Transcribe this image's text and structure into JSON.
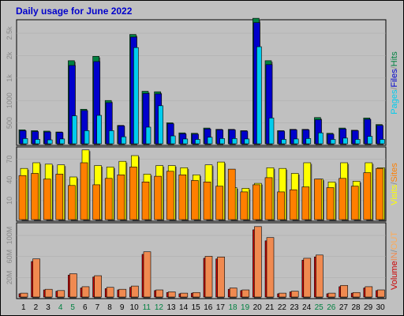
{
  "title": "Daily usage for June 2022",
  "colors": {
    "background": "#c0c0c0",
    "panel_border": "#000000",
    "hits": "#008040",
    "files": "#0000cc",
    "pages": "#00ccee",
    "sites": "#ff7f00",
    "visits": "#ffff00",
    "kbin": "#ff6b2a",
    "kbout": "#cc0000",
    "volume_in": "#f08a50",
    "volume_out": "#cc0000",
    "weekday_label": "#000000",
    "weekend_label": "#008040"
  },
  "chart_data": [
    {
      "type": "bar",
      "panel": "top",
      "categories": [
        "1",
        "2",
        "3",
        "4",
        "5",
        "6",
        "7",
        "8",
        "9",
        "10",
        "11",
        "12",
        "13",
        "14",
        "15",
        "16",
        "17",
        "18",
        "19",
        "20",
        "21",
        "22",
        "23",
        "24",
        "25",
        "26",
        "27",
        "28",
        "29",
        "30"
      ],
      "weekend_days": [
        "4",
        "5",
        "11",
        "12",
        "18",
        "19",
        "25",
        "26"
      ],
      "yticks": [
        "500",
        "1000",
        "1k",
        "2k",
        "2.5k"
      ],
      "ylim": [
        0,
        2800
      ],
      "series": [
        {
          "name": "Hits",
          "values": [
            320,
            300,
            290,
            270,
            1900,
            790,
            2000,
            990,
            420,
            2500,
            1200,
            1190,
            480,
            250,
            240,
            360,
            330,
            330,
            300,
            2870,
            1900,
            300,
            330,
            330,
            600,
            240,
            360,
            310,
            590,
            440
          ]
        },
        {
          "name": "Files",
          "values": [
            300,
            280,
            270,
            260,
            1790,
            760,
            1880,
            940,
            410,
            2440,
            1150,
            1140,
            460,
            230,
            220,
            340,
            320,
            320,
            290,
            2770,
            1810,
            290,
            320,
            320,
            550,
            220,
            340,
            300,
            560,
            420
          ]
        },
        {
          "name": "Pages",
          "values": [
            120,
            100,
            90,
            110,
            640,
            300,
            650,
            300,
            160,
            2200,
            380,
            870,
            180,
            110,
            100,
            150,
            120,
            120,
            110,
            2220,
            590,
            100,
            110,
            120,
            250,
            100,
            130,
            100,
            170,
            100
          ]
        }
      ]
    },
    {
      "type": "bar",
      "panel": "middle",
      "yticks": [
        "10",
        "40",
        "70"
      ],
      "ylim": [
        0,
        100
      ],
      "series": [
        {
          "name": "Visits",
          "values": [
            72,
            80,
            78,
            77,
            60,
            98,
            76,
            74,
            82,
            90,
            64,
            76,
            76,
            73,
            63,
            77,
            81,
            45,
            44,
            51,
            73,
            72,
            65,
            80,
            57,
            53,
            80,
            54,
            80,
            73
          ]
        },
        {
          "name": "Sites",
          "values": [
            62,
            65,
            57,
            64,
            48,
            80,
            49,
            58,
            63,
            74,
            53,
            61,
            68,
            63,
            55,
            53,
            47,
            71,
            39,
            49,
            59,
            39,
            42,
            46,
            57,
            45,
            58,
            47,
            66,
            72
          ]
        }
      ]
    },
    {
      "type": "bar",
      "panel": "bottom",
      "yticks": [
        "20M",
        "60M",
        "100M"
      ],
      "ylim": [
        0,
        110
      ],
      "series": [
        {
          "name": "Volume In",
          "values": [
            6,
            59,
            12,
            10,
            36,
            16,
            33,
            15,
            12,
            17,
            70,
            11,
            8,
            6,
            7,
            63,
            62,
            14,
            11,
            109,
            92,
            6,
            9,
            60,
            65,
            6,
            18,
            7,
            16,
            11
          ]
        },
        {
          "name": "Volume Out",
          "values": [
            5,
            55,
            11,
            9,
            34,
            14,
            31,
            13,
            11,
            15,
            66,
            10,
            7,
            5,
            6,
            60,
            59,
            12,
            10,
            104,
            87,
            5,
            8,
            57,
            62,
            5,
            16,
            6,
            14,
            10
          ]
        }
      ]
    }
  ],
  "legends": {
    "top": [
      {
        "text": "Pages",
        "color": "#00ccee"
      },
      {
        "text": "/",
        "color": "#888888"
      },
      {
        "text": "Files",
        "color": "#0000cc"
      },
      {
        "text": "/",
        "color": "#888888"
      },
      {
        "text": "Hits",
        "color": "#008040"
      }
    ],
    "middle": [
      {
        "text": "Visits",
        "color": "#ffff00"
      },
      {
        "text": "/",
        "color": "#888888"
      },
      {
        "text": "Sites",
        "color": "#ff7f00"
      }
    ],
    "bottom": [
      {
        "text": "Volume",
        "color": "#cc0000"
      },
      {
        "text": "IN",
        "color": "#f08a50"
      },
      {
        "text": "/",
        "color": "#888888"
      },
      {
        "text": "OUT",
        "color": "#ffaa55"
      }
    ]
  }
}
